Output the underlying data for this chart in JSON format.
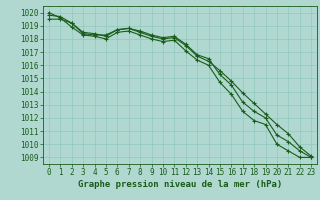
{
  "title": "Graphe pression niveau de la mer (hPa)",
  "bg_color": "#b0d8d0",
  "grid_color": "#90c8bc",
  "line_color": "#1a5c1a",
  "marker_color": "#1a5c1a",
  "xlim_min": -0.5,
  "xlim_max": 23.5,
  "ylim_min": 1008.5,
  "ylim_max": 1020.5,
  "yticks": [
    1009,
    1010,
    1011,
    1012,
    1013,
    1014,
    1015,
    1016,
    1017,
    1018,
    1019,
    1020
  ],
  "xticks": [
    0,
    1,
    2,
    3,
    4,
    5,
    6,
    7,
    8,
    9,
    10,
    11,
    12,
    13,
    14,
    15,
    16,
    17,
    18,
    19,
    20,
    21,
    22,
    23
  ],
  "hours": [
    0,
    1,
    2,
    3,
    4,
    5,
    6,
    7,
    8,
    9,
    10,
    11,
    12,
    13,
    14,
    15,
    16,
    17,
    18,
    19,
    20,
    21,
    22,
    23
  ],
  "series1": [
    1019.5,
    1019.5,
    1019.2,
    1018.4,
    1018.3,
    1018.3,
    1018.7,
    1018.8,
    1018.5,
    1018.2,
    1018.0,
    1018.1,
    1017.5,
    1016.7,
    1016.3,
    1015.6,
    1014.8,
    1013.9,
    1013.1,
    1012.3,
    1011.5,
    1010.8,
    1009.8,
    1009.1
  ],
  "series2": [
    1019.8,
    1019.7,
    1019.2,
    1018.5,
    1018.4,
    1018.2,
    1018.7,
    1018.8,
    1018.6,
    1018.3,
    1018.1,
    1018.2,
    1017.6,
    1016.8,
    1016.5,
    1015.3,
    1014.5,
    1013.2,
    1012.5,
    1012.0,
    1010.7,
    1010.2,
    1009.5,
    1009.0
  ],
  "series3": [
    1020.0,
    1019.6,
    1018.9,
    1018.3,
    1018.2,
    1018.0,
    1018.5,
    1018.6,
    1018.3,
    1018.0,
    1017.8,
    1017.9,
    1017.1,
    1016.4,
    1016.0,
    1014.7,
    1013.8,
    1012.5,
    1011.8,
    1011.5,
    1010.0,
    1009.5,
    1009.0,
    1009.0
  ],
  "tick_fontsize": 5.5,
  "label_fontsize": 6.5,
  "linewidth": 0.8,
  "markersize": 3.5
}
